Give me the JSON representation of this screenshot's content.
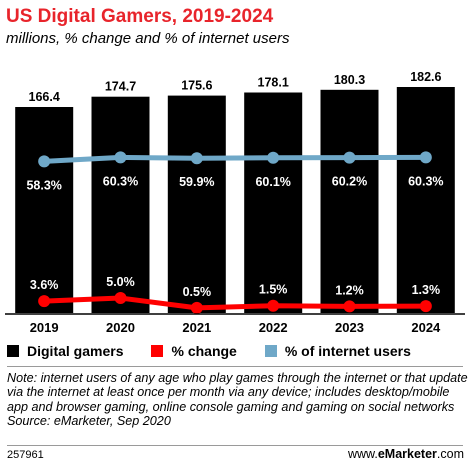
{
  "title": "US Digital Gamers, 2019-2024",
  "subtitle": "millions, % change and % of internet users",
  "chart_data": {
    "type": "bar",
    "categories": [
      "2019",
      "2020",
      "2021",
      "2022",
      "2023",
      "2024"
    ],
    "series": [
      {
        "name": "Digital gamers",
        "type": "bar",
        "values": [
          166.4,
          174.7,
          175.6,
          178.1,
          180.3,
          182.6
        ],
        "labels": [
          "166.4",
          "174.7",
          "175.6",
          "178.1",
          "180.3",
          "182.6"
        ],
        "color": "#000000"
      },
      {
        "name": "% change",
        "type": "line",
        "values": [
          3.6,
          5.0,
          0.5,
          1.5,
          1.2,
          1.3
        ],
        "labels": [
          "3.6%",
          "5.0%",
          "0.5%",
          "1.5%",
          "1.2%",
          "1.3%"
        ],
        "color": "#ff0000"
      },
      {
        "name": "% of internet users",
        "type": "line",
        "values": [
          58.3,
          60.3,
          59.9,
          60.1,
          60.2,
          60.3
        ],
        "labels": [
          "58.3%",
          "60.3%",
          "59.9%",
          "60.1%",
          "60.2%",
          "60.3%"
        ],
        "color": "#6fa8c8"
      }
    ]
  },
  "legend": {
    "bar_label": "Digital gamers",
    "change_label": "% change",
    "share_label": "% of internet users"
  },
  "note": "Note: internet users of any age who play games through the internet or that update via the internet at least once per month via any device; includes desktop/mobile app and browser gaming, online console gaming and gaming on social networks",
  "source": "Source: eMarketer, Sep 2020",
  "footer": {
    "chart_id": "257961",
    "site_prefix": "www.",
    "site_brand": "eMarketer",
    "site_suffix": ".com"
  }
}
